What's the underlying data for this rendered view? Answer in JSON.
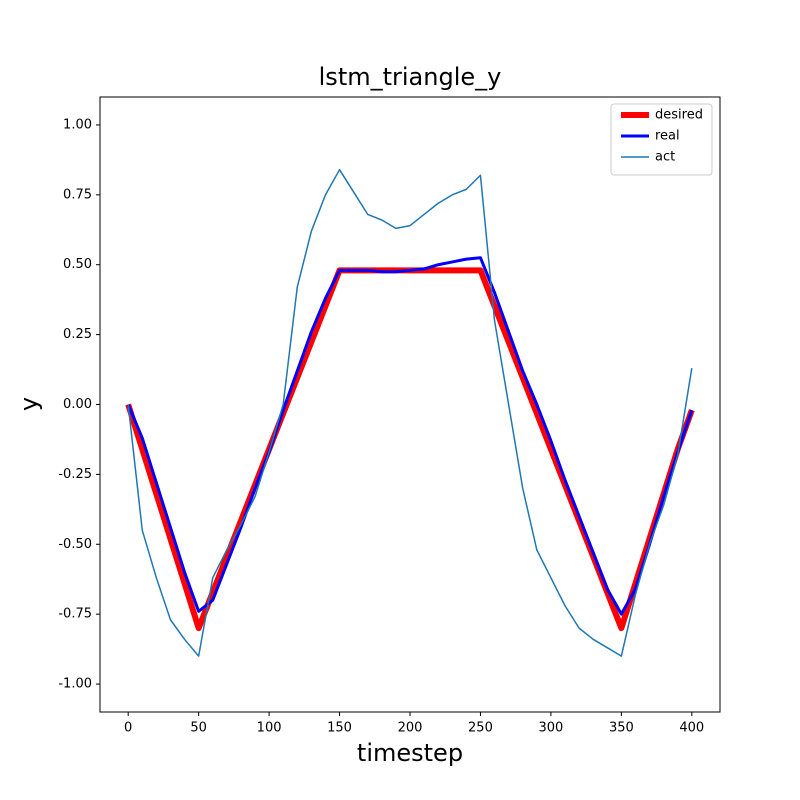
{
  "chart_data": {
    "type": "line",
    "title": "lstm_triangle_y",
    "x_label": "timestep",
    "y_label": "y",
    "x": [
      0,
      10,
      20,
      30,
      40,
      50,
      60,
      70,
      80,
      90,
      100,
      110,
      120,
      130,
      140,
      150,
      160,
      170,
      180,
      190,
      200,
      210,
      220,
      230,
      240,
      250,
      260,
      270,
      280,
      290,
      300,
      310,
      320,
      330,
      340,
      350,
      360,
      370,
      380,
      390,
      400
    ],
    "series": [
      {
        "name": "desired",
        "color": "#ff0000",
        "values": [
          0,
          -0.16,
          -0.32,
          -0.48,
          -0.64,
          -0.8,
          -0.672,
          -0.544,
          -0.416,
          -0.288,
          -0.16,
          -0.032,
          0.096,
          0.224,
          0.352,
          0.48,
          0.48,
          0.48,
          0.48,
          0.48,
          0.48,
          0.48,
          0.48,
          0.48,
          0.48,
          0.48,
          0.352,
          0.224,
          0.096,
          -0.032,
          -0.16,
          -0.288,
          -0.416,
          -0.544,
          -0.672,
          -0.8,
          -0.64,
          -0.48,
          -0.32,
          -0.16,
          -0.02
        ]
      },
      {
        "name": "real",
        "color": "#0000ff",
        "values": [
          0,
          -0.12,
          -0.28,
          -0.44,
          -0.6,
          -0.74,
          -0.7,
          -0.57,
          -0.44,
          -0.3,
          -0.17,
          -0.02,
          0.12,
          0.26,
          0.38,
          0.48,
          0.48,
          0.48,
          0.475,
          0.475,
          0.48,
          0.485,
          0.5,
          0.51,
          0.52,
          0.525,
          0.4,
          0.26,
          0.12,
          0,
          -0.13,
          -0.27,
          -0.4,
          -0.53,
          -0.66,
          -0.75,
          -0.66,
          -0.5,
          -0.33,
          -0.17,
          -0.02
        ]
      },
      {
        "name": "act",
        "color": "#1f77b4",
        "values": [
          0,
          -0.45,
          -0.62,
          -0.77,
          -0.84,
          -0.9,
          -0.62,
          -0.52,
          -0.43,
          -0.33,
          -0.17,
          0,
          0.42,
          0.62,
          0.75,
          0.84,
          0.76,
          0.68,
          0.66,
          0.63,
          0.64,
          0.68,
          0.72,
          0.75,
          0.77,
          0.82,
          0.3,
          0,
          -0.3,
          -0.52,
          -0.62,
          -0.72,
          -0.8,
          -0.84,
          -0.87,
          -0.9,
          -0.68,
          -0.5,
          -0.36,
          -0.18,
          0.13
        ]
      }
    ],
    "xlim": [
      -20,
      420
    ],
    "ylim": [
      -1.1,
      1.1
    ],
    "xticks": [
      0,
      50,
      100,
      150,
      200,
      250,
      300,
      350,
      400
    ],
    "yticks": [
      {
        "value": -1,
        "label": "-1.00"
      },
      {
        "value": -0.75,
        "label": "-0.75"
      },
      {
        "value": -0.5,
        "label": "-0.50"
      },
      {
        "value": -0.25,
        "label": "-0.25"
      },
      {
        "value": 0,
        "label": "0.00"
      },
      {
        "value": 0.25,
        "label": "0.25"
      },
      {
        "value": 0.5,
        "label": "0.50"
      },
      {
        "value": 0.75,
        "label": "0.75"
      },
      {
        "value": 1,
        "label": "1.00"
      }
    ],
    "legend": "upper right"
  }
}
